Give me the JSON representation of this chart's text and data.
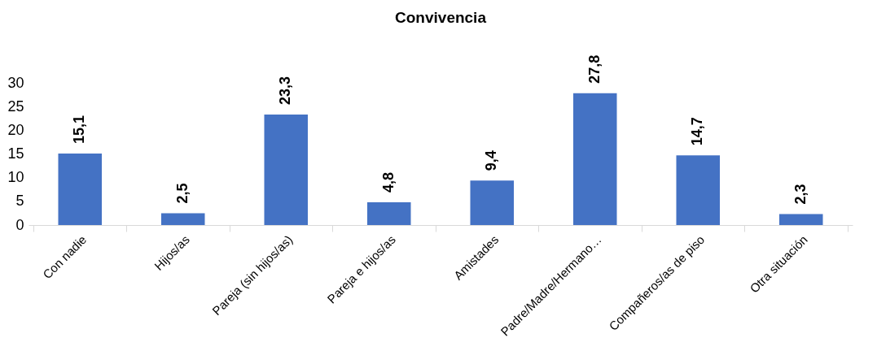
{
  "chart_data": {
    "type": "bar",
    "title": "Convivencia",
    "categories": [
      "Con nadie",
      "Hijos/as",
      "Pareja (sin hijos/as)",
      "Pareja e hijos/as",
      "Amistades",
      "Padre/Madre/Hermano…",
      "Compañeros/as de piso",
      "Otra situación"
    ],
    "values": [
      15.1,
      2.5,
      23.3,
      4.8,
      9.4,
      27.8,
      14.7,
      2.3
    ],
    "value_labels": [
      "15,1",
      "2,5",
      "23,3",
      "4,8",
      "9,4",
      "27,8",
      "14,7",
      "2,3"
    ],
    "color": "#4472c4",
    "ylim": [
      0,
      30
    ],
    "yticks": [
      0,
      5,
      10,
      15,
      20,
      25,
      30
    ],
    "grid": false
  }
}
